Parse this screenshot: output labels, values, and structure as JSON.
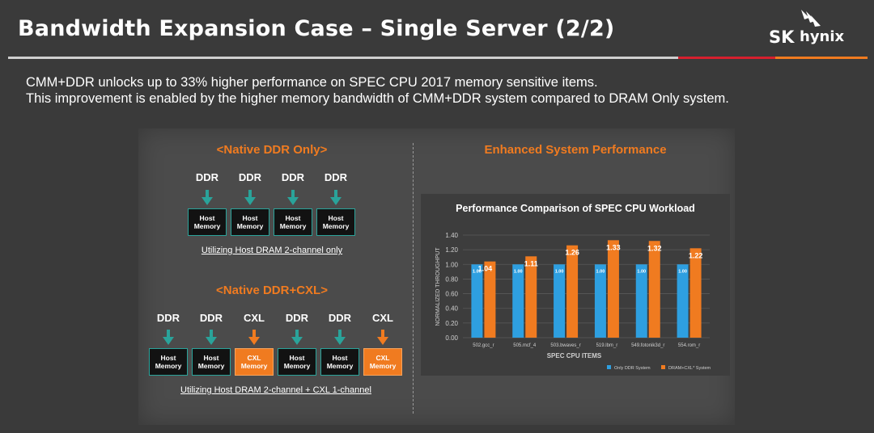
{
  "header": {
    "title": "Bandwidth Expansion Case – Single Server (2/2)",
    "logo_sk": "SK",
    "logo_hynix": "hynix"
  },
  "intro": {
    "line1": "CMM+DDR unlocks up to 33% higher performance on SPEC CPU 2017 memory sensitive items.",
    "line2": "This improvement is enabled by the higher memory bandwidth of CMM+DDR system compared to DRAM Only system."
  },
  "left": {
    "native_title": "<Native DDR Only>",
    "native_labels": [
      "DDR",
      "DDR",
      "DDR",
      "DDR"
    ],
    "native_boxes": [
      {
        "line1": "Host",
        "line2": "Memory"
      },
      {
        "line1": "Host",
        "line2": "Memory"
      },
      {
        "line1": "Host",
        "line2": "Memory"
      },
      {
        "line1": "Host",
        "line2": "Memory"
      }
    ],
    "native_caption": "Utilizing Host DRAM 2-channel only",
    "cxl_title": "<Native DDR+CXL>",
    "cxl_labels": [
      "DDR",
      "DDR",
      "CXL",
      "DDR",
      "DDR",
      "CXL"
    ],
    "cxl_boxes": [
      {
        "line1": "Host",
        "line2": "Memory"
      },
      {
        "line1": "Host",
        "line2": "Memory"
      },
      {
        "line1": "CXL",
        "line2": "Memory"
      },
      {
        "line1": "Host",
        "line2": "Memory"
      },
      {
        "line1": "Host",
        "line2": "Memory"
      },
      {
        "line1": "CXL",
        "line2": "Memory"
      }
    ],
    "cxl_caption": "Utilizing Host DRAM 2-channel + CXL 1-channel"
  },
  "right": {
    "title": "Enhanced System Performance"
  },
  "colors": {
    "accent_orange": "#f07b20",
    "bar_blue": "#2e9fe0",
    "bar_orange": "#f07b20",
    "teal": "#2aa39a"
  },
  "chart_data": {
    "type": "bar",
    "title": "Performance Comparison of SPEC CPU Workload",
    "xlabel": "SPEC CPU ITEMS",
    "ylabel": "NORMALIZED THROUGHPUT",
    "ylim": [
      0,
      1.4
    ],
    "yticks": [
      "0.00",
      "0.20",
      "0.40",
      "0.60",
      "0.80",
      "1.00",
      "1.20",
      "1.40"
    ],
    "grid": true,
    "legend_position": "bottom-right",
    "categories": [
      "502.gcc_r",
      "505.mcf_4",
      "503.bwaves_r",
      "519.lbm_r",
      "549.fotonik3d_r",
      "554.rom_r"
    ],
    "series": [
      {
        "name": "Only DDR System",
        "values": [
          1.0,
          1.0,
          1.0,
          1.0,
          1.0,
          1.0
        ],
        "labels": [
          "1.00",
          "1.00",
          "1.00",
          "1.00",
          "1.00",
          "1.00"
        ]
      },
      {
        "name": "DRAM+CXL* System",
        "values": [
          1.04,
          1.11,
          1.26,
          1.33,
          1.32,
          1.22
        ],
        "labels": [
          "1.04",
          "1.11",
          "1.26",
          "1.33",
          "1.32",
          "1.22"
        ]
      }
    ]
  }
}
